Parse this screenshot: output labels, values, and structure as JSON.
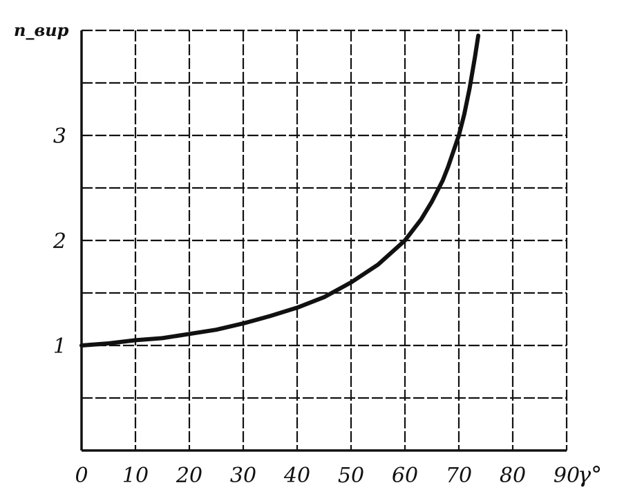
{
  "chart_data": {
    "type": "line",
    "title": "",
    "ylabel": "n_вир",
    "xlabel": "γ°",
    "xlim": [
      0,
      90
    ],
    "ylim": [
      0,
      4
    ],
    "x_ticks": [
      0,
      10,
      20,
      30,
      40,
      50,
      60,
      70,
      80,
      90
    ],
    "x_tick_labels": [
      "0",
      "10",
      "20",
      "30",
      "40",
      "50",
      "60",
      "70",
      "80",
      "90"
    ],
    "y_ticks": [
      1,
      2,
      3
    ],
    "y_tick_labels": [
      "1",
      "2",
      "3"
    ],
    "grid": true,
    "legend": "none",
    "series": [
      {
        "x": [
          0,
          5,
          10,
          15,
          20,
          25,
          30,
          35,
          40,
          45,
          50,
          55,
          60,
          63,
          65,
          67,
          68,
          69,
          70,
          71,
          72,
          73,
          73.6
        ],
        "y": [
          1.0,
          1.02,
          1.05,
          1.07,
          1.11,
          1.15,
          1.21,
          1.28,
          1.36,
          1.46,
          1.6,
          1.77,
          2.0,
          2.2,
          2.37,
          2.57,
          2.7,
          2.85,
          3.0,
          3.2,
          3.45,
          3.75,
          3.95
        ]
      }
    ],
    "colors": {
      "line": "#111111",
      "grid": "#111111",
      "axis": "#111111"
    }
  }
}
